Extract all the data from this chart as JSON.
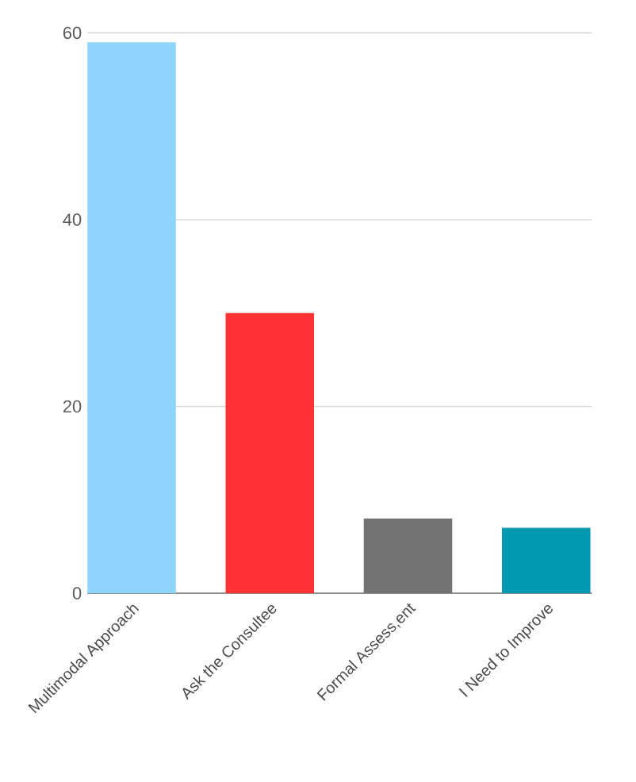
{
  "chart_data": {
    "type": "bar",
    "categories": [
      "Multimodal Approach",
      "Ask the Consultee",
      "Formal Assess,ent",
      "I Need to Improve"
    ],
    "values": [
      59,
      30,
      8,
      7
    ],
    "colors": [
      "#90d5fb",
      "#ff3333",
      "#737373",
      "#0099b0"
    ],
    "ylim": [
      0,
      60
    ],
    "yticks": [
      0,
      20,
      40,
      60
    ],
    "grid": "y"
  }
}
